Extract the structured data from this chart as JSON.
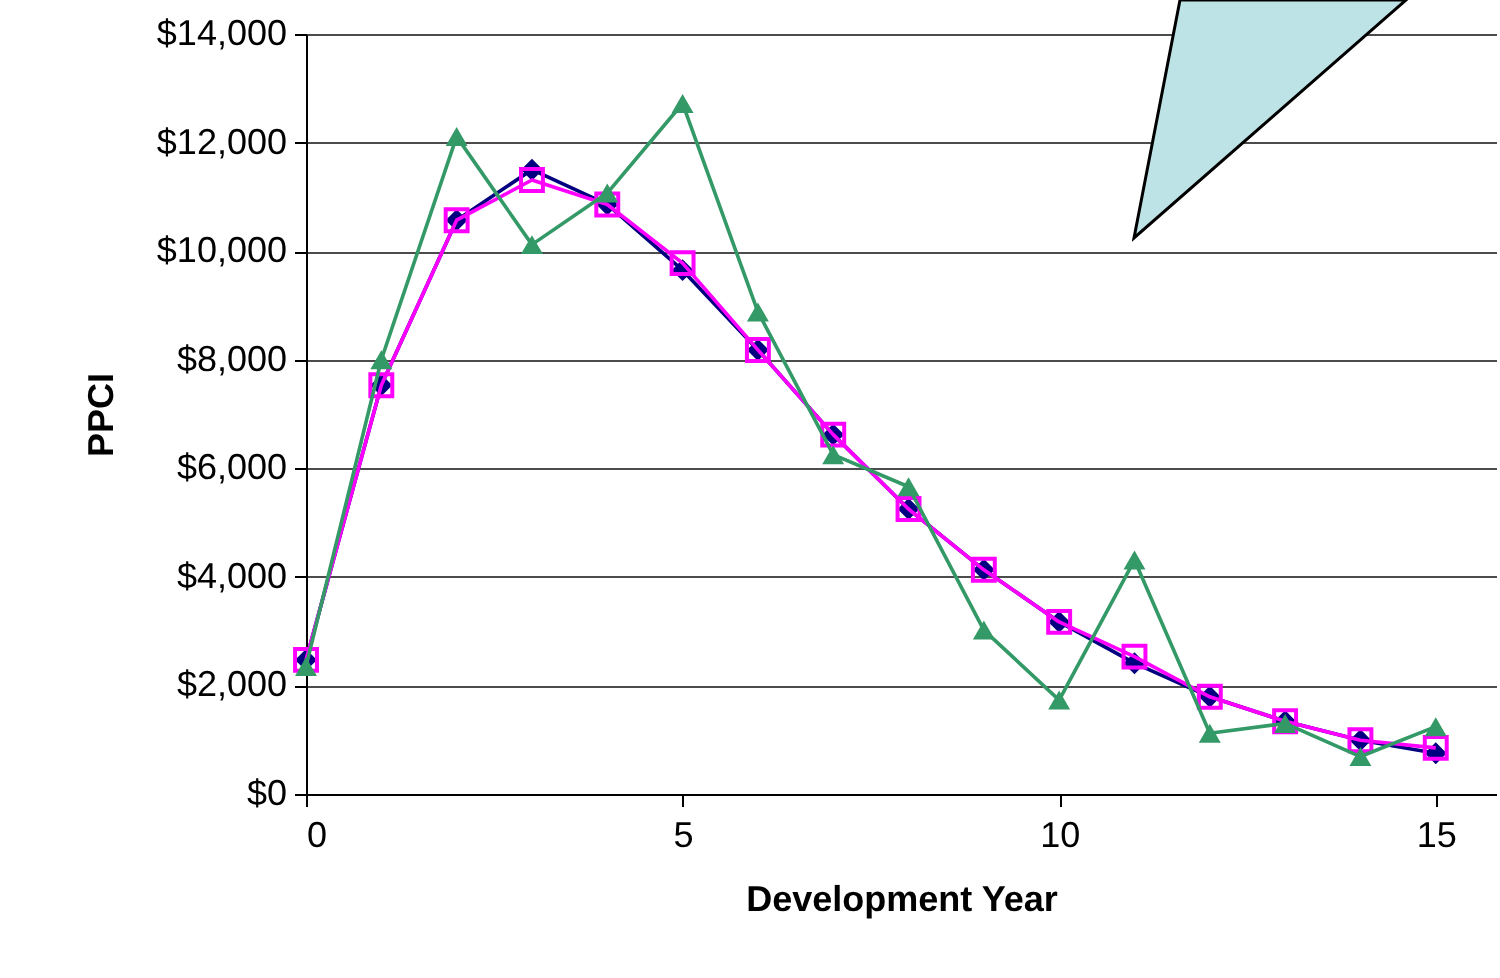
{
  "chart_data": {
    "type": "line",
    "xlabel": "Development Year",
    "ylabel": "PPCI",
    "x": [
      0,
      1,
      2,
      3,
      4,
      5,
      6,
      7,
      8,
      9,
      10,
      11,
      12,
      13,
      14,
      15
    ],
    "series": [
      {
        "color": "#000080",
        "marker": "diamond",
        "values": [
          2470,
          7530,
          10570,
          11500,
          10860,
          9650,
          8180,
          6620,
          5250,
          4130,
          3170,
          2410,
          1790,
          1340,
          990,
          750
        ]
      },
      {
        "color": "#ff00ff",
        "marker": "square",
        "values": [
          2470,
          7530,
          10570,
          11310,
          10860,
          9780,
          8180,
          6620,
          5250,
          4130,
          3170,
          2530,
          1790,
          1340,
          990,
          850
        ]
      },
      {
        "color": "#339966",
        "marker": "triangle",
        "values": [
          2350,
          8000,
          12110,
          10120,
          11070,
          12720,
          8880,
          6250,
          5660,
          3020,
          1730,
          4310,
          1120,
          1300,
          690,
          1240
        ]
      }
    ],
    "xlim": [
      0,
      15.8
    ],
    "xticks": [
      0,
      5,
      10,
      15
    ],
    "ylim": [
      0,
      14000
    ],
    "yticks": [
      {
        "value": 0,
        "label": "$0"
      },
      {
        "value": 2000,
        "label": "$2,000"
      },
      {
        "value": 4000,
        "label": "$4,000"
      },
      {
        "value": 6000,
        "label": "$6,000"
      },
      {
        "value": 8000,
        "label": "$8,000"
      },
      {
        "value": 10000,
        "label": "$10,000"
      },
      {
        "value": 12000,
        "label": "$12,000"
      },
      {
        "value": 14000,
        "label": "$14,000"
      }
    ],
    "grid": "y"
  }
}
